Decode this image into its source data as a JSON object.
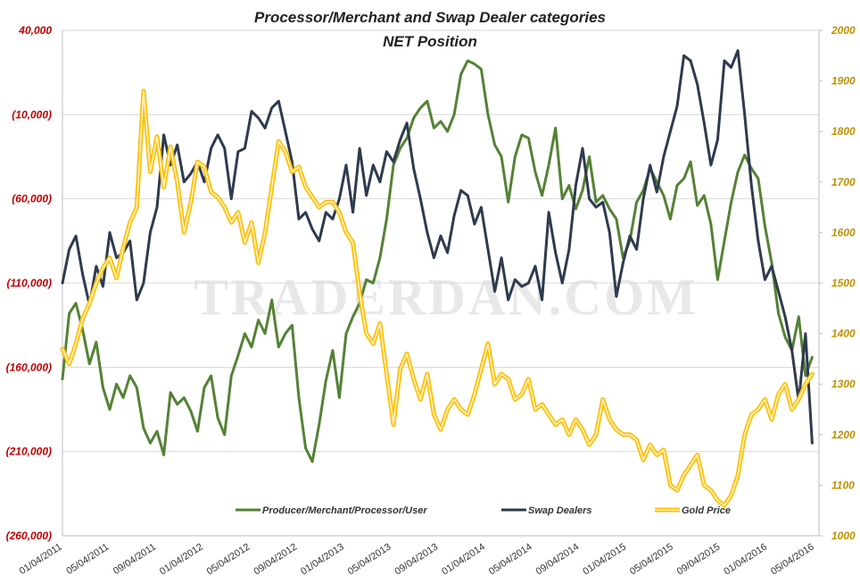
{
  "chart_data": {
    "type": "line",
    "title": "Processor/Merchant  and Swap Dealer categories",
    "subtitle": "NET Position",
    "watermark": "TRADERDAN.COM",
    "x_ticks": [
      "01/04/2011",
      "05/04/2011",
      "09/04/2011",
      "01/04/2012",
      "05/04/2012",
      "09/04/2012",
      "01/04/2013",
      "05/04/2013",
      "09/04/2013",
      "01/04/2014",
      "05/04/2014",
      "09/04/2014",
      "01/04/2015",
      "05/04/2015",
      "09/04/2015",
      "01/04/2016",
      "05/04/2016"
    ],
    "x_range": [
      2011.0,
      2016.6
    ],
    "y_left": {
      "ticks": [
        40000,
        -10000,
        -60000,
        -110000,
        -160000,
        -210000,
        -260000
      ],
      "tick_labels": [
        "40,000",
        "(10,000)",
        "(60,000)",
        "(110,000)",
        "(160,000)",
        "(210,000)",
        "(260,000)"
      ],
      "range": [
        -260000,
        40000
      ]
    },
    "y_right": {
      "ticks": [
        1000,
        1100,
        1200,
        1300,
        1400,
        1500,
        1600,
        1700,
        1800,
        1900,
        2000
      ],
      "tick_labels": [
        "1000",
        "1100",
        "1200",
        "1300",
        "1400",
        "1500",
        "1600",
        "1700",
        "1800",
        "1900",
        "2000"
      ],
      "range": [
        1000,
        2000
      ]
    },
    "grid": true,
    "legend_position": "bottom",
    "series": [
      {
        "name": "Producer/Merchant/Processor/User",
        "axis": "left",
        "color": "#548235",
        "style": "solid",
        "x": [
          2011.0,
          2011.05,
          2011.1,
          2011.15,
          2011.2,
          2011.25,
          2011.3,
          2011.35,
          2011.4,
          2011.45,
          2011.5,
          2011.55,
          2011.6,
          2011.65,
          2011.7,
          2011.75,
          2011.8,
          2011.85,
          2011.9,
          2011.95,
          2012.0,
          2012.05,
          2012.1,
          2012.15,
          2012.2,
          2012.25,
          2012.3,
          2012.35,
          2012.4,
          2012.45,
          2012.5,
          2012.55,
          2012.6,
          2012.65,
          2012.7,
          2012.75,
          2012.8,
          2012.85,
          2012.9,
          2012.95,
          2013.0,
          2013.05,
          2013.1,
          2013.15,
          2013.2,
          2013.25,
          2013.3,
          2013.35,
          2013.4,
          2013.45,
          2013.5,
          2013.55,
          2013.6,
          2013.65,
          2013.7,
          2013.75,
          2013.8,
          2013.85,
          2013.9,
          2013.95,
          2014.0,
          2014.05,
          2014.1,
          2014.15,
          2014.2,
          2014.25,
          2014.3,
          2014.35,
          2014.4,
          2014.45,
          2014.5,
          2014.55,
          2014.6,
          2014.65,
          2014.7,
          2014.75,
          2014.8,
          2014.85,
          2014.9,
          2014.95,
          2015.0,
          2015.05,
          2015.1,
          2015.15,
          2015.2,
          2015.25,
          2015.3,
          2015.35,
          2015.4,
          2015.45,
          2015.5,
          2015.55,
          2015.6,
          2015.65,
          2015.7,
          2015.75,
          2015.8,
          2015.85,
          2015.9,
          2015.95,
          2016.0,
          2016.05,
          2016.1,
          2016.15,
          2016.2,
          2016.25,
          2016.3,
          2016.35,
          2016.4,
          2016.45,
          2016.5,
          2016.55
        ],
        "values": [
          -167000,
          -128000,
          -122000,
          -138000,
          -158000,
          -145000,
          -172000,
          -185000,
          -170000,
          -178000,
          -165000,
          -172000,
          -196000,
          -205000,
          -198000,
          -212000,
          -175000,
          -182000,
          -178000,
          -186000,
          -198000,
          -172000,
          -165000,
          -190000,
          -200000,
          -165000,
          -153000,
          -140000,
          -148000,
          -132000,
          -140000,
          -120000,
          -148000,
          -140000,
          -135000,
          -178000,
          -208000,
          -216000,
          -194000,
          -168000,
          -150000,
          -178000,
          -140000,
          -130000,
          -122000,
          -108000,
          -110000,
          -95000,
          -72000,
          -40000,
          -30000,
          -24000,
          -12000,
          -6000,
          -2000,
          -18000,
          -14000,
          -20000,
          -10000,
          14000,
          22000,
          20000,
          17000,
          -10000,
          -28000,
          -35000,
          -62000,
          -35000,
          -22000,
          -24000,
          -44000,
          -58000,
          -40000,
          -18000,
          -60000,
          -52000,
          -66000,
          -55000,
          -35000,
          -62000,
          -58000,
          -66000,
          -72000,
          -95000,
          -85000,
          -62000,
          -55000,
          -42000,
          -50000,
          -58000,
          -72000,
          -52000,
          -48000,
          -38000,
          -64000,
          -58000,
          -75000,
          -108000,
          -85000,
          -62000,
          -44000,
          -34000,
          -42000,
          -48000,
          -76000,
          -98000,
          -128000,
          -142000,
          -150000,
          -130000,
          -165000,
          -154000
        ]
      },
      {
        "name": "Swap Dealers",
        "axis": "left",
        "color": "#2e3a4e",
        "style": "solid",
        "x": [
          2011.0,
          2011.05,
          2011.1,
          2011.15,
          2011.2,
          2011.25,
          2011.3,
          2011.35,
          2011.4,
          2011.45,
          2011.5,
          2011.55,
          2011.6,
          2011.65,
          2011.7,
          2011.75,
          2011.8,
          2011.85,
          2011.9,
          2011.95,
          2012.0,
          2012.05,
          2012.1,
          2012.15,
          2012.2,
          2012.25,
          2012.3,
          2012.35,
          2012.4,
          2012.45,
          2012.5,
          2012.55,
          2012.6,
          2012.65,
          2012.7,
          2012.75,
          2012.8,
          2012.85,
          2012.9,
          2012.95,
          2013.0,
          2013.05,
          2013.1,
          2013.15,
          2013.2,
          2013.25,
          2013.3,
          2013.35,
          2013.4,
          2013.45,
          2013.5,
          2013.55,
          2013.6,
          2013.65,
          2013.7,
          2013.75,
          2013.8,
          2013.85,
          2013.9,
          2013.95,
          2014.0,
          2014.05,
          2014.1,
          2014.15,
          2014.2,
          2014.25,
          2014.3,
          2014.35,
          2014.4,
          2014.45,
          2014.5,
          2014.55,
          2014.6,
          2014.65,
          2014.7,
          2014.75,
          2014.8,
          2014.85,
          2014.9,
          2014.95,
          2015.0,
          2015.05,
          2015.1,
          2015.15,
          2015.2,
          2015.25,
          2015.3,
          2015.35,
          2015.4,
          2015.45,
          2015.5,
          2015.55,
          2015.6,
          2015.65,
          2015.7,
          2015.75,
          2015.8,
          2015.85,
          2015.9,
          2015.95,
          2016.0,
          2016.05,
          2016.1,
          2016.15,
          2016.2,
          2016.25,
          2016.3,
          2016.35,
          2016.4,
          2016.45,
          2016.5,
          2016.55
        ],
        "values": [
          -110000,
          -90000,
          -82000,
          -105000,
          -123000,
          -100000,
          -112000,
          -80000,
          -95000,
          -92000,
          -85000,
          -120000,
          -110000,
          -80000,
          -65000,
          -22000,
          -40000,
          -28000,
          -50000,
          -45000,
          -38000,
          -50000,
          -30000,
          -22000,
          -30000,
          -60000,
          -32000,
          -30000,
          -8000,
          -12000,
          -18000,
          -6000,
          -2000,
          -20000,
          -38000,
          -72000,
          -68000,
          -78000,
          -85000,
          -68000,
          -72000,
          -60000,
          -40000,
          -68000,
          -30000,
          -58000,
          -40000,
          -50000,
          -32000,
          -38000,
          -25000,
          -15000,
          -42000,
          -60000,
          -80000,
          -95000,
          -82000,
          -92000,
          -70000,
          -55000,
          -58000,
          -75000,
          -65000,
          -90000,
          -115000,
          -95000,
          -120000,
          -108000,
          -112000,
          -110000,
          -100000,
          -120000,
          -68000,
          -92000,
          -110000,
          -90000,
          -52000,
          -30000,
          -60000,
          -65000,
          -62000,
          -80000,
          -118000,
          -98000,
          -82000,
          -90000,
          -60000,
          -40000,
          -56000,
          -35000,
          -20000,
          -5000,
          25000,
          22000,
          8000,
          -15000,
          -40000,
          -25000,
          22000,
          18000,
          28000,
          -10000,
          -52000,
          -85000,
          -108000,
          -100000,
          -115000,
          -130000,
          -150000,
          -180000,
          -140000,
          -205000
        ]
      },
      {
        "name": "Gold Price",
        "axis": "right",
        "color": "#ffc000",
        "style": "double",
        "x": [
          2011.0,
          2011.05,
          2011.1,
          2011.15,
          2011.2,
          2011.25,
          2011.3,
          2011.35,
          2011.4,
          2011.45,
          2011.5,
          2011.55,
          2011.6,
          2011.65,
          2011.7,
          2011.75,
          2011.8,
          2011.85,
          2011.9,
          2011.95,
          2012.0,
          2012.05,
          2012.1,
          2012.15,
          2012.2,
          2012.25,
          2012.3,
          2012.35,
          2012.4,
          2012.45,
          2012.5,
          2012.55,
          2012.6,
          2012.65,
          2012.7,
          2012.75,
          2012.8,
          2012.85,
          2012.9,
          2012.95,
          2013.0,
          2013.05,
          2013.1,
          2013.15,
          2013.2,
          2013.25,
          2013.3,
          2013.35,
          2013.4,
          2013.45,
          2013.5,
          2013.55,
          2013.6,
          2013.65,
          2013.7,
          2013.75,
          2013.8,
          2013.85,
          2013.9,
          2013.95,
          2014.0,
          2014.05,
          2014.1,
          2014.15,
          2014.2,
          2014.25,
          2014.3,
          2014.35,
          2014.4,
          2014.45,
          2014.5,
          2014.55,
          2014.6,
          2014.65,
          2014.7,
          2014.75,
          2014.8,
          2014.85,
          2014.9,
          2014.95,
          2015.0,
          2015.05,
          2015.1,
          2015.15,
          2015.2,
          2015.25,
          2015.3,
          2015.35,
          2015.4,
          2015.45,
          2015.5,
          2015.55,
          2015.6,
          2015.65,
          2015.7,
          2015.75,
          2015.8,
          2015.85,
          2015.9,
          2015.95,
          2016.0,
          2016.05,
          2016.1,
          2016.15,
          2016.2,
          2016.25,
          2016.3,
          2016.35,
          2016.4,
          2016.45,
          2016.5,
          2016.55
        ],
        "values": [
          1370,
          1340,
          1380,
          1430,
          1460,
          1500,
          1530,
          1550,
          1510,
          1570,
          1620,
          1650,
          1880,
          1720,
          1790,
          1690,
          1770,
          1700,
          1600,
          1660,
          1740,
          1730,
          1680,
          1670,
          1650,
          1620,
          1640,
          1580,
          1620,
          1540,
          1600,
          1690,
          1780,
          1760,
          1720,
          1730,
          1690,
          1670,
          1650,
          1660,
          1660,
          1640,
          1600,
          1580,
          1480,
          1400,
          1380,
          1420,
          1320,
          1220,
          1330,
          1360,
          1310,
          1270,
          1320,
          1240,
          1210,
          1250,
          1270,
          1250,
          1240,
          1280,
          1330,
          1380,
          1300,
          1320,
          1310,
          1270,
          1280,
          1310,
          1250,
          1260,
          1240,
          1220,
          1230,
          1200,
          1230,
          1210,
          1180,
          1200,
          1270,
          1230,
          1210,
          1200,
          1200,
          1190,
          1150,
          1180,
          1160,
          1170,
          1100,
          1090,
          1120,
          1140,
          1160,
          1100,
          1090,
          1070,
          1060,
          1080,
          1120,
          1200,
          1240,
          1250,
          1270,
          1230,
          1280,
          1300,
          1250,
          1270,
          1300,
          1320
        ]
      }
    ]
  }
}
